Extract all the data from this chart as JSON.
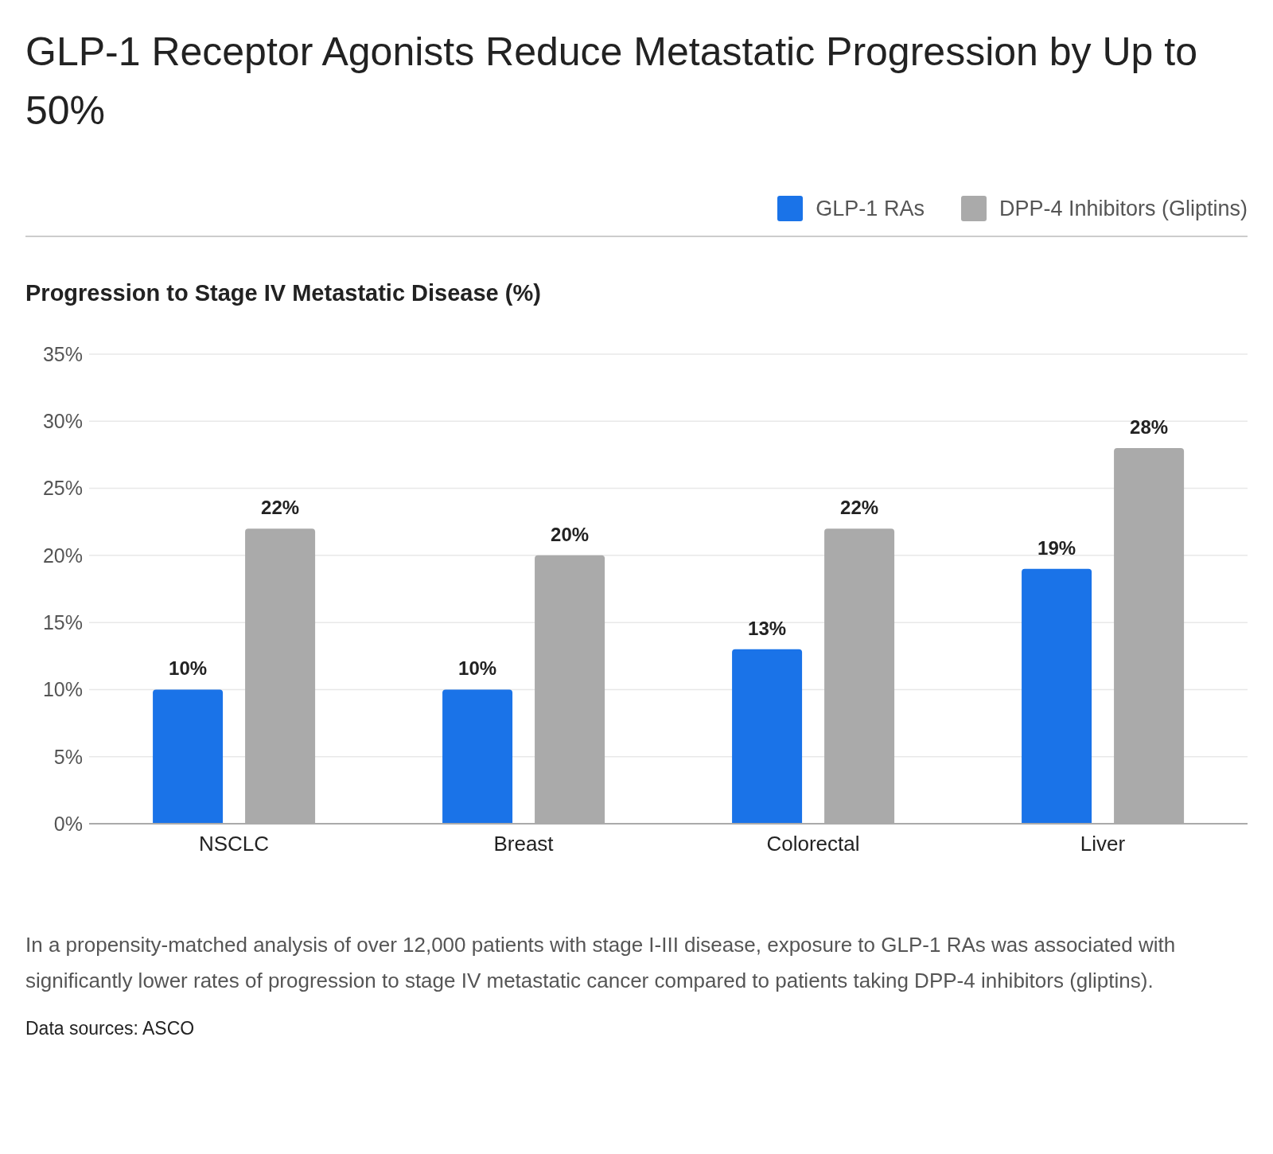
{
  "chart_data": {
    "type": "bar",
    "title": "GLP-1 Receptor Agonists Reduce Metastatic Progression by Up to 50%",
    "ylabel": "Progression to Stage IV Metastatic Disease (%)",
    "categories": [
      "NSCLC",
      "Breast",
      "Colorectal",
      "Liver"
    ],
    "series": [
      {
        "name": "GLP-1 RAs",
        "color": "#1a73e8",
        "values": [
          10,
          10,
          13,
          19
        ],
        "value_labels": [
          "10%",
          "10%",
          "13%",
          "19%"
        ]
      },
      {
        "name": "DPP-4 Inhibitors (Gliptins)",
        "color": "#aaaaaa",
        "values": [
          22,
          20,
          22,
          28
        ],
        "value_labels": [
          "22%",
          "20%",
          "22%",
          "28%"
        ]
      }
    ],
    "ylim": [
      0,
      35
    ],
    "yticks": [
      {
        "value": 0,
        "label": "0%"
      },
      {
        "value": 5,
        "label": "5%"
      },
      {
        "value": 10,
        "label": "10%"
      },
      {
        "value": 15,
        "label": "15%"
      },
      {
        "value": 20,
        "label": "20%"
      },
      {
        "value": 25,
        "label": "25%"
      },
      {
        "value": 30,
        "label": "30%"
      },
      {
        "value": 35,
        "label": "35%"
      }
    ],
    "grid": "y",
    "legend": "top right",
    "annotations": [
      "In a propensity-matched analysis of over 12,000 patients with stage I-III disease, exposure to GLP-1 RAs was associated with significantly lower rates of progression to stage IV metastatic cancer compared to patients taking DPP-4 inhibitors (gliptins).",
      "Data sources: ASCO"
    ]
  }
}
